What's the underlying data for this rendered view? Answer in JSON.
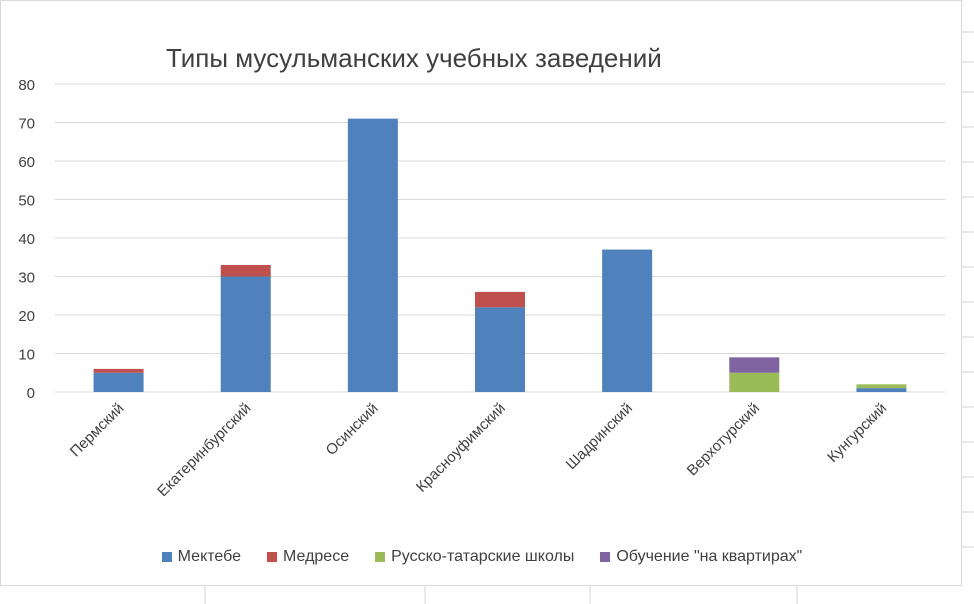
{
  "chart_data": {
    "type": "bar",
    "stacked": true,
    "title": "Типы мусульманских учебных заведений",
    "xlabel": "",
    "ylabel": "",
    "ylim": [
      0,
      80
    ],
    "yticks": [
      0,
      10,
      20,
      30,
      40,
      50,
      60,
      70,
      80
    ],
    "grid": true,
    "legend_position": "bottom",
    "categories": [
      "Пермский",
      "Екатеринбургский",
      "Осинский",
      "Красноуфимский",
      "Шадринский",
      "Верхотурский",
      "Кунгурский"
    ],
    "series": [
      {
        "name": "Мектебе",
        "color": "#4f81bd",
        "values": [
          5,
          30,
          71,
          22,
          37,
          0,
          1
        ]
      },
      {
        "name": "Медресе",
        "color": "#c0504d",
        "values": [
          1,
          3,
          0,
          4,
          0,
          0,
          0
        ]
      },
      {
        "name": "Русско-татарские школы",
        "color": "#9bbb59",
        "values": [
          0,
          0,
          0,
          0,
          0,
          5,
          1
        ]
      },
      {
        "name": "Обучение \"на квартирах\"",
        "color": "#8064a2",
        "values": [
          0,
          0,
          0,
          0,
          0,
          4,
          0
        ]
      }
    ]
  }
}
